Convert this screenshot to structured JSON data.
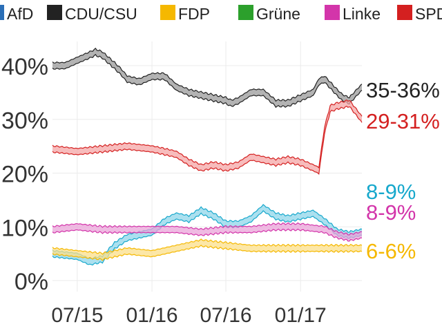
{
  "colors": {
    "AfD": "#2b6fb7",
    "CDU/CSU": "#222222",
    "FDP": "#f5b800",
    "Grüne": "#2ca02c",
    "Linke": "#d335aa",
    "SPD": "#d42020",
    "Grüne_line": "#17a8cc"
  },
  "chart_data": {
    "type": "line",
    "title": "",
    "xlabel": "",
    "ylabel": "",
    "ylim": [
      0,
      45
    ],
    "ytick_labels": [
      "0%",
      "10%",
      "20%",
      "30%",
      "40%"
    ],
    "yticks": [
      0,
      10,
      20,
      30,
      40
    ],
    "xlim": [
      "2015-05-01",
      "2017-06-01"
    ],
    "xticks": [
      "2015-07-01",
      "2016-01-01",
      "2016-07-01",
      "2017-01-01"
    ],
    "xtick_labels": [
      "07/15",
      "01/16",
      "07/16",
      "01/17"
    ],
    "grid": true,
    "legend": {
      "position": "top",
      "entries": [
        "AfD",
        "CDU/CSU",
        "FDP",
        "Grüne",
        "Linke",
        "SPD"
      ]
    },
    "series": [
      {
        "name": "CDU/CSU",
        "label": "35-36%",
        "x": [
          "2015-05-01",
          "2015-06-01",
          "2015-07-01",
          "2015-08-01",
          "2015-08-15",
          "2015-09-01",
          "2015-10-01",
          "2015-10-15",
          "2015-11-01",
          "2015-12-01",
          "2016-01-01",
          "2016-01-15",
          "2016-02-01",
          "2016-03-01",
          "2016-04-01",
          "2016-05-01",
          "2016-06-01",
          "2016-07-01",
          "2016-07-15",
          "2016-08-01",
          "2016-09-01",
          "2016-10-01",
          "2016-11-01",
          "2016-12-01",
          "2017-01-01",
          "2017-02-01",
          "2017-02-15",
          "2017-03-01",
          "2017-04-01",
          "2017-04-15",
          "2017-05-01",
          "2017-06-01"
        ],
        "y": [
          40,
          40,
          41,
          42,
          42.5,
          42,
          40,
          39,
          37.5,
          37,
          38,
          38,
          38,
          36,
          35,
          34.5,
          34,
          33.5,
          33,
          33.5,
          35,
          35,
          33,
          33,
          34,
          35,
          37,
          37.5,
          35,
          34,
          33.5,
          36
        ]
      },
      {
        "name": "SPD",
        "label": "29-31%",
        "x": [
          "2015-05-01",
          "2015-07-01",
          "2015-09-01",
          "2015-11-01",
          "2016-01-01",
          "2016-02-01",
          "2016-03-01",
          "2016-04-01",
          "2016-05-01",
          "2016-06-01",
          "2016-07-01",
          "2016-08-01",
          "2016-09-01",
          "2016-10-01",
          "2016-11-01",
          "2016-12-01",
          "2017-01-01",
          "2017-02-01",
          "2017-02-15",
          "2017-03-01",
          "2017-03-15",
          "2017-04-01",
          "2017-05-01",
          "2017-06-01"
        ],
        "y": [
          24.5,
          24,
          24.5,
          25,
          24.5,
          24,
          23.5,
          22,
          21,
          21.5,
          21,
          21.5,
          23,
          22.5,
          22,
          22.5,
          22,
          21,
          20.5,
          28,
          32,
          32.5,
          33,
          30
        ]
      },
      {
        "name": "Grüne",
        "label": "8-9%",
        "x": [
          "2015-05-01",
          "2015-07-01",
          "2015-08-01",
          "2015-09-01",
          "2015-10-01",
          "2015-11-01",
          "2015-12-01",
          "2016-01-01",
          "2016-02-01",
          "2016-03-01",
          "2016-04-01",
          "2016-05-01",
          "2016-06-01",
          "2016-07-01",
          "2016-08-01",
          "2016-09-01",
          "2016-10-01",
          "2016-11-01",
          "2016-12-01",
          "2017-01-01",
          "2017-02-01",
          "2017-03-01",
          "2017-04-01",
          "2017-05-01",
          "2017-06-01"
        ],
        "y": [
          5,
          4.5,
          3.5,
          4,
          6.5,
          8,
          8.5,
          9,
          11,
          12,
          11.5,
          13,
          12,
          10.5,
          10.5,
          11.5,
          13.5,
          12,
          11.5,
          12,
          12.5,
          11,
          9,
          8.5,
          9
        ]
      },
      {
        "name": "Linke",
        "label": "8-9%",
        "x": [
          "2015-05-01",
          "2015-07-01",
          "2015-09-01",
          "2015-11-01",
          "2016-01-01",
          "2016-03-01",
          "2016-05-01",
          "2016-07-01",
          "2016-09-01",
          "2016-11-01",
          "2017-01-01",
          "2017-03-01",
          "2017-04-01",
          "2017-05-01",
          "2017-06-01"
        ],
        "y": [
          9.5,
          10,
          9.5,
          9.5,
          9.5,
          9.5,
          9,
          9.5,
          9.5,
          10,
          10,
          9.5,
          8.5,
          8,
          8.5
        ]
      },
      {
        "name": "FDP",
        "label": "6-6%",
        "x": [
          "2015-05-01",
          "2015-07-01",
          "2015-09-01",
          "2015-11-01",
          "2016-01-01",
          "2016-03-01",
          "2016-05-01",
          "2016-07-01",
          "2016-09-01",
          "2016-11-01",
          "2017-01-01",
          "2017-03-01",
          "2017-05-01",
          "2017-06-01"
        ],
        "y": [
          5.5,
          5,
          4.5,
          5.5,
          5,
          6,
          7,
          6.5,
          6,
          6,
          6,
          6,
          6,
          6
        ]
      }
    ]
  }
}
